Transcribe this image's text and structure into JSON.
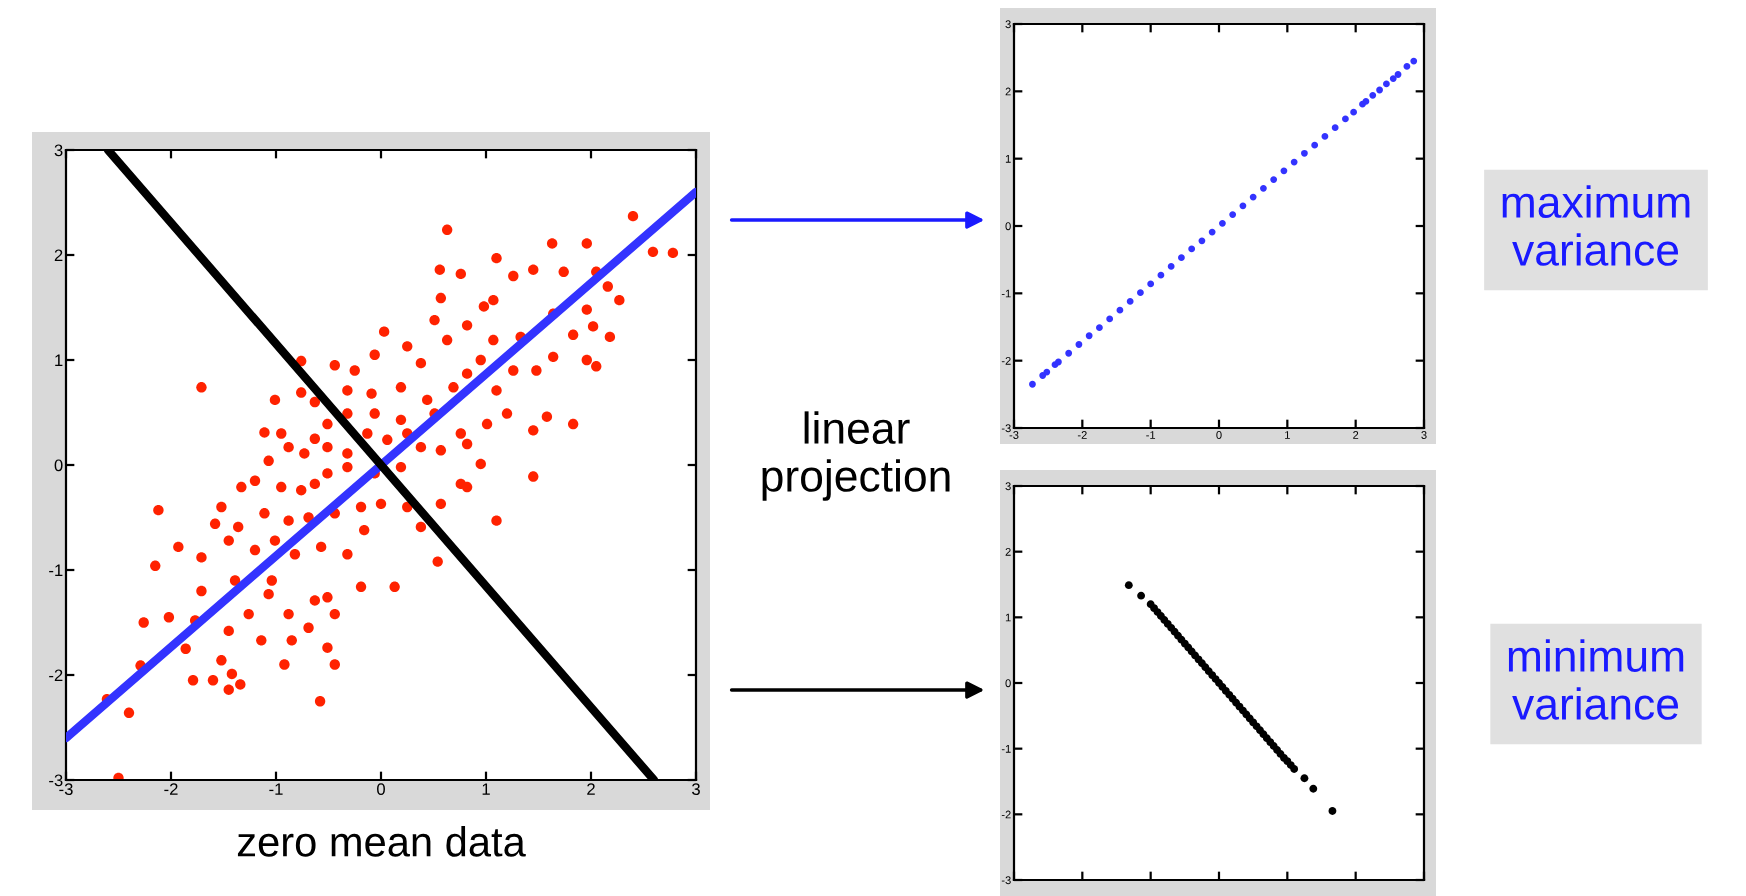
{
  "chart_data": [
    {
      "type": "scatter",
      "xlabel": "zero mean data",
      "annotations": [
        "linear\nprojection"
      ],
      "xlim": [
        -3,
        3
      ],
      "ylim": [
        -3,
        3
      ],
      "xticks": [
        -3,
        -2,
        -1,
        0,
        1,
        2,
        3
      ],
      "yticks": [
        -3,
        -2,
        -1,
        0,
        1,
        2,
        3
      ],
      "series": [
        {
          "color": "#ff2200",
          "marker": "circle",
          "x": [
            0.63,
            2.4,
            2.59,
            2.78,
            1.63,
            1.96,
            1.1,
            0.56,
            0.76,
            1.45,
            1.74,
            2.05,
            1.26,
            0.98,
            0.57,
            0.51,
            0.82,
            1.07,
            2.27,
            2.16,
            1.96,
            2.02,
            2.18,
            1.83,
            1.64,
            1.33,
            1.07,
            0.63,
            0.03,
            0.25,
            -0.06,
            0.38,
            1.96,
            2.05,
            1.64,
            1.48,
            1.26,
            0.95,
            0.82,
            -0.76,
            -0.44,
            -0.25,
            -1.71,
            -1.01,
            -0.76,
            -0.63,
            -0.32,
            -0.09,
            0.19,
            0.44,
            0.69,
            1.1,
            1.2,
            1.58,
            1.83,
            1.45,
            1.01,
            0.76,
            0.51,
            0.19,
            -0.06,
            -0.32,
            -0.51,
            -1.11,
            -0.95,
            -0.63,
            -0.88,
            -0.73,
            -0.51,
            -0.32,
            -0.13,
            0.06,
            0.25,
            0.38,
            0.57,
            0.82,
            0.95,
            0.76,
            0.82,
            1.45,
            0.19,
            -0.06,
            -0.32,
            -0.51,
            -1.07,
            -1.2,
            -1.33,
            -0.95,
            -0.76,
            -0.63,
            -1.52,
            -1.58,
            -1.36,
            -1.11,
            -0.88,
            -0.69,
            -0.44,
            -0.19,
            0.0,
            0.25,
            0.57,
            0.38,
            -0.16,
            -2.12,
            -1.93,
            -2.15,
            -1.71,
            -1.45,
            -1.2,
            -1.01,
            -0.82,
            -0.57,
            -0.32,
            0.13,
            0.54,
            1.1,
            -1.71,
            -1.39,
            -1.04,
            -1.07,
            -0.63,
            -0.51,
            -0.19,
            -1.26,
            -0.88,
            -0.69,
            -0.44,
            -2.26,
            -2.02,
            -1.77,
            -1.45,
            -1.52,
            -1.14,
            -0.85,
            -0.51,
            -0.44,
            -0.92,
            -1.86,
            -2.29,
            -1.42,
            -1.6,
            -1.79,
            -1.34,
            -1.45,
            -0.58,
            -2.61,
            -2.4,
            -2.5
          ],
          "values": [
            2.24,
            2.37,
            2.03,
            2.02,
            2.11,
            2.11,
            1.97,
            1.86,
            1.82,
            1.86,
            1.84,
            1.84,
            1.8,
            1.51,
            1.59,
            1.38,
            1.33,
            1.57,
            1.57,
            1.7,
            1.48,
            1.32,
            1.22,
            1.24,
            1.44,
            1.22,
            1.19,
            1.19,
            1.27,
            1.13,
            1.05,
            0.97,
            1.0,
            0.94,
            1.03,
            0.9,
            0.9,
            1.0,
            0.87,
            0.99,
            0.95,
            0.9,
            0.74,
            0.62,
            0.69,
            0.6,
            0.71,
            0.68,
            0.74,
            0.62,
            0.74,
            0.71,
            0.49,
            0.46,
            0.39,
            0.33,
            0.39,
            0.3,
            0.49,
            0.43,
            0.49,
            0.49,
            0.39,
            0.31,
            0.3,
            0.25,
            0.17,
            0.11,
            0.17,
            0.11,
            0.3,
            0.24,
            0.3,
            0.17,
            0.14,
            0.2,
            0.01,
            -0.18,
            -0.21,
            -0.11,
            -0.02,
            -0.08,
            -0.02,
            -0.08,
            0.04,
            -0.15,
            -0.21,
            -0.21,
            -0.24,
            -0.18,
            -0.4,
            -0.56,
            -0.59,
            -0.46,
            -0.53,
            -0.5,
            -0.46,
            -0.4,
            -0.37,
            -0.4,
            -0.37,
            -0.59,
            -0.62,
            -0.43,
            -0.78,
            -0.96,
            -0.88,
            -0.72,
            -0.81,
            -0.72,
            -0.85,
            -0.78,
            -0.85,
            -1.16,
            -0.92,
            -0.53,
            -1.2,
            -1.1,
            -1.1,
            -1.23,
            -1.29,
            -1.26,
            -1.16,
            -1.42,
            -1.42,
            -1.55,
            -1.42,
            -1.5,
            -1.45,
            -1.48,
            -1.58,
            -1.86,
            -1.67,
            -1.67,
            -1.74,
            -1.9,
            -1.9,
            -1.75,
            -1.91,
            -1.99,
            -2.05,
            -2.05,
            -2.09,
            -2.14,
            -2.25,
            -2.23,
            -2.36,
            -2.98
          ]
        },
        {
          "type": "line",
          "color": "#3333ff",
          "x": [
            -3,
            3
          ],
          "values": [
            -2.6,
            2.6
          ]
        },
        {
          "type": "line",
          "color": "#000000",
          "x": [
            -2.6,
            2.6
          ],
          "values": [
            3,
            -3
          ]
        }
      ]
    },
    {
      "type": "scatter",
      "annotations": [
        "maximum\nvariance"
      ],
      "xlim": [
        -3,
        3
      ],
      "ylim": [
        -3,
        3
      ],
      "xticks": [
        -3,
        -2,
        -1,
        0,
        1,
        2,
        3
      ],
      "yticks": [
        -3,
        -2,
        -1,
        0,
        1,
        2,
        3
      ],
      "marker": "circle",
      "series": [
        {
          "color": "#3333ff",
          "x": [
            -2.73,
            -2.58,
            -2.52,
            -2.4,
            -2.35,
            -2.2,
            -2.05,
            -1.9,
            -1.75,
            -1.6,
            -1.45,
            -1.3,
            -1.15,
            -1.0,
            -0.85,
            -0.7,
            -0.55,
            -0.4,
            -0.25,
            -0.1,
            0.05,
            0.2,
            0.35,
            0.5,
            0.65,
            0.8,
            0.95,
            1.1,
            1.25,
            1.4,
            1.55,
            1.7,
            1.85,
            1.97,
            2.1,
            2.15,
            2.25,
            2.35,
            2.45,
            2.55,
            2.62,
            2.75,
            2.85
          ],
          "values": [
            -2.35,
            -2.22,
            -2.17,
            -2.06,
            -2.02,
            -1.89,
            -1.76,
            -1.63,
            -1.51,
            -1.38,
            -1.25,
            -1.12,
            -0.99,
            -0.86,
            -0.73,
            -0.6,
            -0.47,
            -0.34,
            -0.22,
            -0.09,
            0.04,
            0.17,
            0.3,
            0.43,
            0.56,
            0.69,
            0.82,
            0.95,
            1.08,
            1.2,
            1.33,
            1.46,
            1.59,
            1.69,
            1.81,
            1.85,
            1.94,
            2.02,
            2.11,
            2.19,
            2.25,
            2.37,
            2.45
          ]
        }
      ]
    },
    {
      "type": "scatter",
      "annotations": [
        "minimum\nvariance"
      ],
      "xlim": [
        -3,
        3
      ],
      "ylim": [
        -3,
        3
      ],
      "xticks": [
        -3,
        -2,
        -1,
        0,
        1,
        2,
        3
      ],
      "yticks": [
        -3,
        -2,
        -1,
        0,
        1,
        2,
        3
      ],
      "tick_labels": "y",
      "marker": "circle",
      "series": [
        {
          "color": "#000000",
          "x": [
            -1.32,
            -1.14,
            -1.0,
            -0.95,
            -0.9,
            -0.85,
            -0.8,
            -0.75,
            -0.7,
            -0.65,
            -0.6,
            -0.55,
            -0.5,
            -0.45,
            -0.4,
            -0.35,
            -0.3,
            -0.25,
            -0.2,
            -0.15,
            -0.1,
            -0.05,
            0.0,
            0.05,
            0.1,
            0.15,
            0.2,
            0.25,
            0.3,
            0.35,
            0.4,
            0.45,
            0.5,
            0.55,
            0.6,
            0.65,
            0.7,
            0.75,
            0.8,
            0.85,
            0.9,
            0.95,
            1.0,
            1.05,
            1.1,
            1.25,
            1.38,
            1.66
          ],
          "values": [
            1.49,
            1.33,
            1.2,
            1.14,
            1.08,
            1.02,
            0.96,
            0.9,
            0.84,
            0.78,
            0.72,
            0.66,
            0.6,
            0.54,
            0.48,
            0.42,
            0.36,
            0.3,
            0.24,
            0.18,
            0.12,
            0.06,
            0.0,
            -0.06,
            -0.12,
            -0.18,
            -0.24,
            -0.3,
            -0.36,
            -0.42,
            -0.48,
            -0.54,
            -0.6,
            -0.66,
            -0.72,
            -0.78,
            -0.84,
            -0.9,
            -0.96,
            -1.02,
            -1.08,
            -1.14,
            -1.19,
            -1.25,
            -1.31,
            -1.45,
            -1.61,
            -1.95
          ]
        }
      ]
    }
  ]
}
